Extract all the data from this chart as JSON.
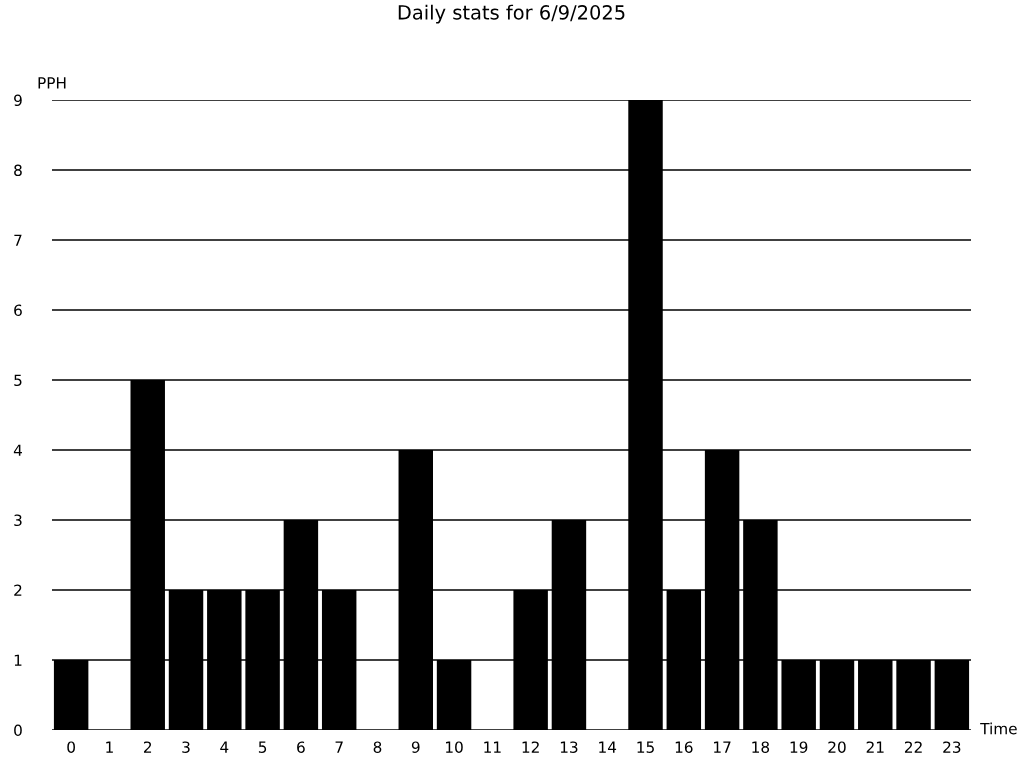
{
  "chart_data": {
    "type": "bar",
    "title": "Daily stats for 6/9/2025",
    "xlabel": "Time",
    "ylabel": "PPH",
    "categories": [
      "0",
      "1",
      "2",
      "3",
      "4",
      "5",
      "6",
      "7",
      "8",
      "9",
      "10",
      "11",
      "12",
      "13",
      "14",
      "15",
      "16",
      "17",
      "18",
      "19",
      "20",
      "21",
      "22",
      "23"
    ],
    "values": [
      1,
      0,
      5,
      2,
      2,
      2,
      3,
      2,
      0,
      4,
      1,
      0,
      2,
      3,
      0,
      9,
      2,
      4,
      3,
      1,
      1,
      1,
      1,
      1
    ],
    "color": "#000000",
    "ylim": [
      0,
      9
    ],
    "yticks": [
      0,
      1,
      2,
      3,
      4,
      5,
      6,
      7,
      8,
      9
    ],
    "grid": "y"
  }
}
